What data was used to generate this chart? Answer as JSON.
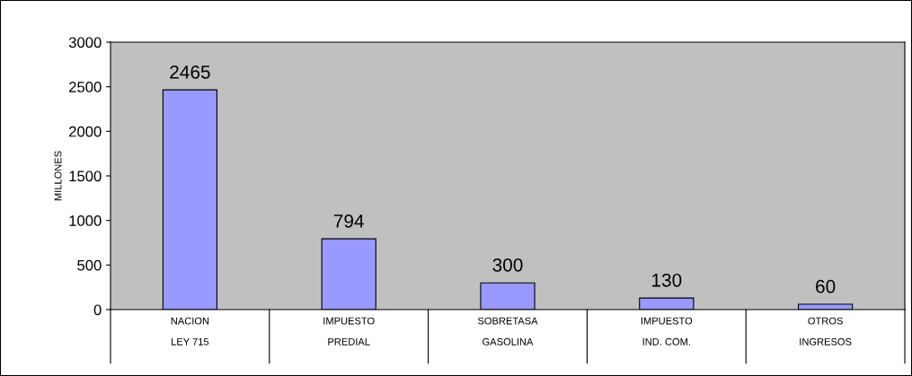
{
  "chart_data": {
    "type": "bar",
    "ylabel": "MILLONES",
    "categories": [
      "NACION\nLEY 715",
      "IMPUESTO\nPREDIAL",
      "SOBRETASA\nGASOLINA",
      "IMPUESTO\nIND. COM.",
      "OTROS\nINGRESOS"
    ],
    "values": [
      2465,
      794,
      300,
      130,
      60
    ],
    "color": "#9999ff",
    "ylim": [
      0,
      3000
    ],
    "yticks": [
      0,
      500,
      1000,
      1500,
      2000,
      2500,
      3000
    ],
    "grid": false,
    "legend": false,
    "data_labels": true
  }
}
